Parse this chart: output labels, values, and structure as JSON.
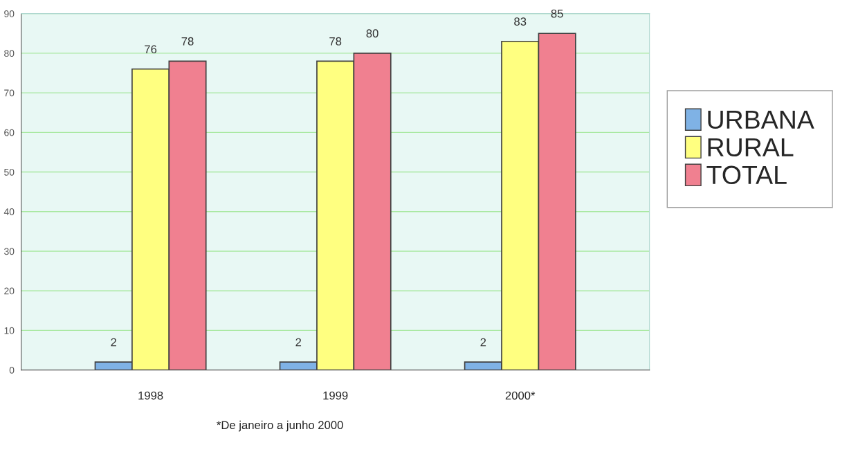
{
  "chart_data": {
    "type": "bar",
    "categories": [
      "1998",
      "1999",
      "2000*"
    ],
    "series": [
      {
        "name": "URBANA",
        "color": "#7fb2e5",
        "values": [
          2,
          2,
          2
        ]
      },
      {
        "name": "RURAL",
        "color": "#ffff80",
        "values": [
          76,
          78,
          83
        ]
      },
      {
        "name": "TOTAL",
        "color": "#f08090",
        "values": [
          78,
          80,
          85
        ]
      }
    ],
    "ylim": [
      0,
      90
    ],
    "yticks": [
      0,
      10,
      20,
      30,
      40,
      50,
      60,
      70,
      80,
      90
    ],
    "grid": "y",
    "legend": "right",
    "data_labels": true,
    "annotations": [
      "*De janeiro a junho 2000"
    ]
  }
}
